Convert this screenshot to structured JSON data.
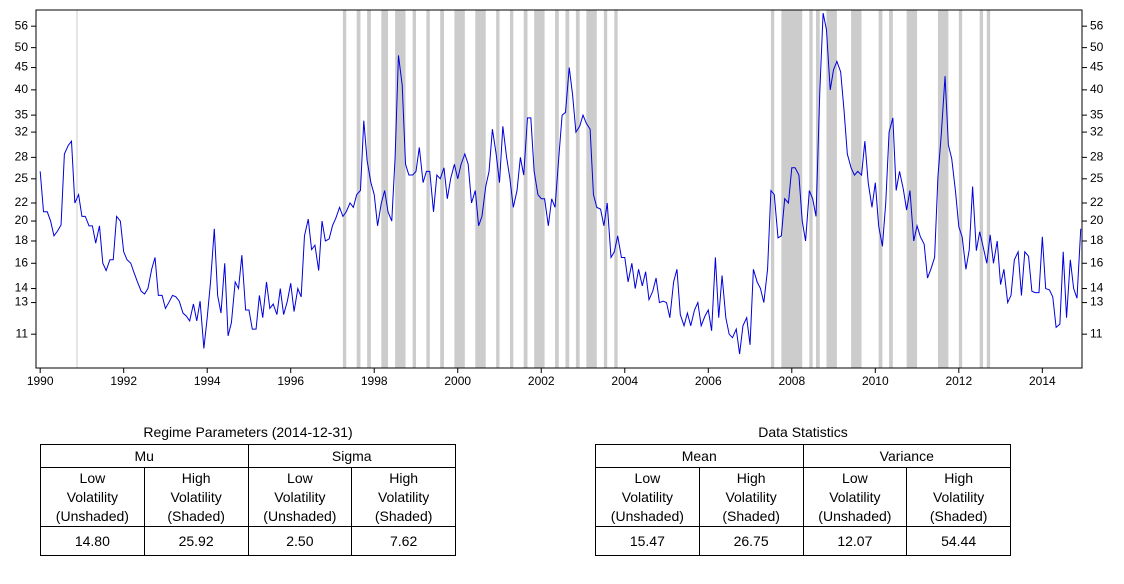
{
  "chart_data": {
    "type": "line",
    "ylog": true,
    "xlim": [
      1989.9,
      2014.95
    ],
    "xticks": [
      1990,
      1992,
      1994,
      1996,
      1998,
      2000,
      2002,
      2004,
      2006,
      2008,
      2010,
      2012,
      2014
    ],
    "ylim": [
      9.2,
      61
    ],
    "yticks": [
      11,
      13,
      14,
      16,
      18,
      20,
      22,
      25,
      28,
      32,
      35,
      40,
      45,
      50,
      56
    ],
    "shade_color": "#cccccc",
    "shaded": [
      [
        1990.87,
        1990.89
      ],
      [
        1997.25,
        1997.33
      ],
      [
        1997.58,
        1997.67
      ],
      [
        1997.83,
        1997.92
      ],
      [
        1998.17,
        1998.33
      ],
      [
        1998.5,
        1998.75
      ],
      [
        1998.92,
        1999.0
      ],
      [
        1999.25,
        1999.33
      ],
      [
        1999.58,
        1999.67
      ],
      [
        1999.92,
        2000.17
      ],
      [
        2000.42,
        2000.67
      ],
      [
        2000.92,
        2001.0
      ],
      [
        2001.25,
        2001.33
      ],
      [
        2001.58,
        2001.67
      ],
      [
        2001.83,
        2002.08
      ],
      [
        2002.33,
        2002.42
      ],
      [
        2002.58,
        2002.67
      ],
      [
        2002.83,
        2002.92
      ],
      [
        2003.08,
        2003.33
      ],
      [
        2003.5,
        2003.58
      ],
      [
        2003.75,
        2003.83
      ],
      [
        2007.5,
        2007.58
      ],
      [
        2007.75,
        2008.25
      ],
      [
        2008.42,
        2008.5
      ],
      [
        2008.58,
        2008.67
      ],
      [
        2008.83,
        2009.08
      ],
      [
        2009.42,
        2009.67
      ],
      [
        2010.08,
        2010.17
      ],
      [
        2010.33,
        2010.42
      ],
      [
        2010.75,
        2011.0
      ],
      [
        2011.5,
        2011.75
      ],
      [
        2012.0,
        2012.08
      ],
      [
        2012.5,
        2012.58
      ],
      [
        2012.67,
        2012.75
      ]
    ],
    "x": [
      1990,
      1990.08,
      1990.17,
      1990.25,
      1990.33,
      1990.42,
      1990.5,
      1990.58,
      1990.67,
      1990.75,
      1990.83,
      1990.92,
      1991,
      1991.08,
      1991.17,
      1991.25,
      1991.33,
      1991.42,
      1991.5,
      1991.58,
      1991.67,
      1991.75,
      1991.83,
      1991.92,
      1992,
      1992.08,
      1992.17,
      1992.25,
      1992.33,
      1992.42,
      1992.5,
      1992.58,
      1992.67,
      1992.75,
      1992.83,
      1992.92,
      1993,
      1993.08,
      1993.17,
      1993.25,
      1993.33,
      1993.42,
      1993.5,
      1993.58,
      1993.67,
      1993.75,
      1993.83,
      1993.92,
      1994,
      1994.08,
      1994.17,
      1994.25,
      1994.33,
      1994.42,
      1994.5,
      1994.58,
      1994.67,
      1994.75,
      1994.83,
      1994.92,
      1995,
      1995.08,
      1995.17,
      1995.25,
      1995.33,
      1995.42,
      1995.5,
      1995.58,
      1995.67,
      1995.75,
      1995.83,
      1995.92,
      1996,
      1996.08,
      1996.17,
      1996.25,
      1996.33,
      1996.42,
      1996.5,
      1996.58,
      1996.67,
      1996.75,
      1996.83,
      1996.92,
      1997,
      1997.08,
      1997.17,
      1997.25,
      1997.33,
      1997.42,
      1997.5,
      1997.58,
      1997.67,
      1997.75,
      1997.83,
      1997.92,
      1998,
      1998.08,
      1998.17,
      1998.25,
      1998.33,
      1998.42,
      1998.5,
      1998.58,
      1998.67,
      1998.75,
      1998.83,
      1998.92,
      1999,
      1999.08,
      1999.17,
      1999.25,
      1999.33,
      1999.42,
      1999.5,
      1999.58,
      1999.67,
      1999.75,
      1999.83,
      1999.92,
      2000,
      2000.08,
      2000.17,
      2000.25,
      2000.33,
      2000.42,
      2000.5,
      2000.58,
      2000.67,
      2000.75,
      2000.83,
      2000.92,
      2001,
      2001.08,
      2001.17,
      2001.25,
      2001.33,
      2001.42,
      2001.5,
      2001.58,
      2001.67,
      2001.75,
      2001.83,
      2001.92,
      2002,
      2002.08,
      2002.17,
      2002.25,
      2002.33,
      2002.42,
      2002.5,
      2002.58,
      2002.67,
      2002.75,
      2002.83,
      2002.92,
      2003,
      2003.08,
      2003.17,
      2003.25,
      2003.33,
      2003.42,
      2003.5,
      2003.58,
      2003.67,
      2003.75,
      2003.83,
      2003.92,
      2004,
      2004.08,
      2004.17,
      2004.25,
      2004.33,
      2004.42,
      2004.5,
      2004.58,
      2004.67,
      2004.75,
      2004.83,
      2004.92,
      2005,
      2005.08,
      2005.17,
      2005.25,
      2005.33,
      2005.42,
      2005.5,
      2005.58,
      2005.67,
      2005.75,
      2005.83,
      2005.92,
      2006,
      2006.08,
      2006.17,
      2006.25,
      2006.33,
      2006.42,
      2006.5,
      2006.58,
      2006.67,
      2006.75,
      2006.83,
      2006.92,
      2007,
      2007.08,
      2007.17,
      2007.25,
      2007.33,
      2007.42,
      2007.5,
      2007.58,
      2007.67,
      2007.75,
      2007.83,
      2007.92,
      2008,
      2008.08,
      2008.17,
      2008.25,
      2008.33,
      2008.42,
      2008.5,
      2008.58,
      2008.67,
      2008.75,
      2008.83,
      2008.92,
      2009,
      2009.08,
      2009.17,
      2009.25,
      2009.33,
      2009.42,
      2009.5,
      2009.58,
      2009.67,
      2009.75,
      2009.83,
      2009.92,
      2010,
      2010.08,
      2010.17,
      2010.25,
      2010.33,
      2010.42,
      2010.5,
      2010.58,
      2010.67,
      2010.75,
      2010.83,
      2010.92,
      2011,
      2011.08,
      2011.17,
      2011.25,
      2011.33,
      2011.42,
      2011.5,
      2011.58,
      2011.67,
      2011.75,
      2011.83,
      2011.92,
      2012,
      2012.08,
      2012.17,
      2012.25,
      2012.33,
      2012.42,
      2012.5,
      2012.58,
      2012.67,
      2012.75,
      2012.83,
      2012.92,
      2013,
      2013.08,
      2013.17,
      2013.25,
      2013.33,
      2013.42,
      2013.5,
      2013.58,
      2013.67,
      2013.75,
      2013.83,
      2013.92,
      2014,
      2014.08,
      2014.17,
      2014.25,
      2014.33,
      2014.42,
      2014.5,
      2014.58,
      2014.67,
      2014.75,
      2014.83,
      2014.92
    ],
    "series": [
      {
        "color": "#0000dd",
        "values": [
          26,
          21,
          21,
          20,
          18.5,
          19,
          19.6,
          28.5,
          29.8,
          30.5,
          22,
          23,
          20.5,
          20.5,
          19.5,
          19.5,
          17.8,
          19.5,
          16,
          15.4,
          16.3,
          16.3,
          20.5,
          20,
          17,
          16.3,
          16,
          15.2,
          14.5,
          13.8,
          13.6,
          14,
          15.5,
          16.5,
          13.5,
          13.5,
          12.6,
          13,
          13.5,
          13.4,
          13.1,
          12.3,
          12.1,
          11.8,
          12.9,
          11.8,
          13.1,
          10.2,
          12,
          14.5,
          19.2,
          13.5,
          12.3,
          16,
          10.9,
          11.7,
          14.5,
          14,
          16.7,
          12.5,
          12.5,
          11.3,
          11.3,
          13.5,
          12,
          14.5,
          12.6,
          12.9,
          12.2,
          14,
          12.2,
          13.1,
          14.4,
          12.4,
          14,
          13.4,
          18.5,
          20.2,
          17.2,
          17.6,
          15.4,
          20,
          18,
          18.2,
          19.5,
          20.3,
          21.5,
          20.5,
          21,
          22,
          21.5,
          23,
          23.5,
          34,
          27.5,
          24.5,
          23,
          19.5,
          22,
          23.5,
          21,
          20,
          28,
          48,
          41,
          27,
          25.5,
          25.5,
          26,
          29.5,
          24.5,
          26,
          26,
          21,
          25.5,
          25,
          26.5,
          22.5,
          25,
          27,
          25,
          27,
          28.5,
          27,
          22,
          23.5,
          19.5,
          20.5,
          24,
          26,
          32.5,
          28.5,
          24.5,
          33,
          28,
          25,
          21.5,
          23.5,
          28,
          25.5,
          34.5,
          34.5,
          26,
          23,
          22.5,
          22.5,
          19.5,
          22.5,
          21.5,
          28,
          35,
          35.5,
          45,
          39,
          32,
          33,
          35,
          33.5,
          32.5,
          23,
          21.5,
          21.3,
          19.5,
          22,
          16.5,
          17,
          18.5,
          16.5,
          16.5,
          14.5,
          16,
          14,
          15.5,
          14.2,
          15.3,
          13.2,
          13.8,
          14.8,
          13,
          13.1,
          13,
          12,
          14.5,
          15.5,
          12.2,
          11.5,
          12.3,
          11.5,
          12.5,
          13,
          11.5,
          12.1,
          12.5,
          11.2,
          16.5,
          12,
          15,
          12,
          11,
          10.8,
          11.3,
          9.9,
          11.5,
          12,
          10.4,
          15.5,
          14.5,
          14,
          13,
          15.5,
          23.5,
          23,
          18.3,
          18.5,
          22.5,
          22,
          26.5,
          26.5,
          25.5,
          20,
          18,
          23.5,
          22.5,
          20.5,
          39.5,
          60,
          55,
          40,
          44.5,
          46.5,
          44,
          36,
          28.5,
          26.5,
          25.5,
          26,
          25.5,
          30.5,
          24.5,
          21.5,
          24.5,
          19.5,
          17.5,
          22,
          32,
          34.5,
          23.5,
          26,
          23.7,
          21.2,
          23.5,
          18,
          19.5,
          18.4,
          17.7,
          14.8,
          15.5,
          16.5,
          25.3,
          31.6,
          43,
          29.9,
          27.8,
          23.4,
          19.4,
          18.4,
          15.5,
          17.2,
          24,
          17.1,
          18.9,
          17.5,
          16,
          18.6,
          16,
          18,
          14.3,
          15.5,
          13,
          13.5,
          16.3,
          17,
          13.5,
          17,
          16.6,
          13.8,
          13.7,
          13.7,
          18.4,
          14,
          13.9,
          13.4,
          11.4,
          11.6,
          17,
          12,
          16.3,
          14,
          13.3,
          19.2
        ]
      }
    ]
  },
  "tables": [
    {
      "title": "Regime Parameters (2014-12-31)",
      "groups": [
        "Mu",
        "Sigma"
      ],
      "columns": [
        [
          "Low",
          "Volatility",
          "(Unshaded)"
        ],
        [
          "High",
          "Volatility",
          "(Shaded)"
        ],
        [
          "Low",
          "Volatility",
          "(Unshaded)"
        ],
        [
          "High",
          "Volatility",
          "(Shaded)"
        ]
      ],
      "values": [
        "14.80",
        "25.92",
        "2.50",
        "7.62"
      ]
    },
    {
      "title": "Data Statistics",
      "groups": [
        "Mean",
        "Variance"
      ],
      "columns": [
        [
          "Low",
          "Volatility",
          "(Unshaded)"
        ],
        [
          "High",
          "Volatility",
          "(Shaded)"
        ],
        [
          "Low",
          "Volatility",
          "(Unshaded)"
        ],
        [
          "High",
          "Volatility",
          "(Shaded)"
        ]
      ],
      "values": [
        "15.47",
        "26.75",
        "12.07",
        "54.44"
      ]
    }
  ]
}
